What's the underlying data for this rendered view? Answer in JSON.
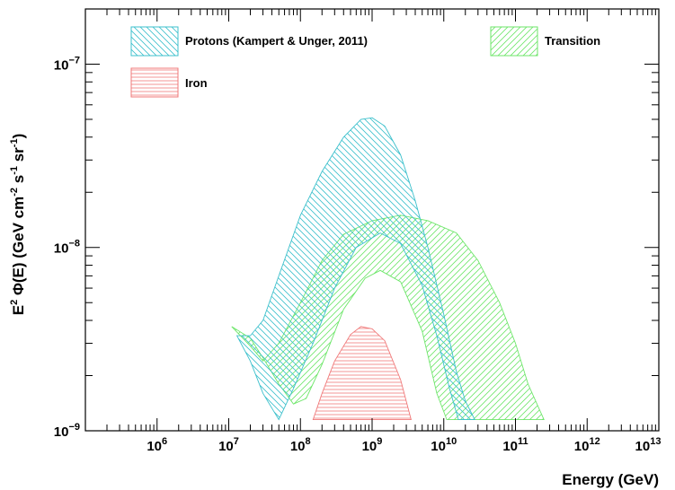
{
  "chart_data": {
    "type": "area",
    "title": "",
    "xlabel": "Energy (GeV)",
    "ylabel_parts": {
      "base": "E",
      "exp": "2",
      "rest": " Φ(E) (GeV cm",
      "exp2": "-2",
      "mid": " s",
      "exp3": "-1",
      "mid2": " sr",
      "exp4": "-1",
      "end": ")"
    },
    "x_scale": "log",
    "y_scale": "log",
    "xlim": [
      100000.0,
      10000000000000.0
    ],
    "ylim": [
      1e-09,
      2e-07
    ],
    "grid": false,
    "legend_position": "top",
    "x_ticks": [
      {
        "base": "10",
        "exp": "6",
        "value": 1000000.0
      },
      {
        "base": "10",
        "exp": "7",
        "value": 10000000.0
      },
      {
        "base": "10",
        "exp": "8",
        "value": 100000000.0
      },
      {
        "base": "10",
        "exp": "9",
        "value": 1000000000.0
      },
      {
        "base": "10",
        "exp": "10",
        "value": 10000000000.0
      },
      {
        "base": "10",
        "exp": "11",
        "value": 100000000000.0
      },
      {
        "base": "10",
        "exp": "12",
        "value": 1000000000000.0
      },
      {
        "base": "10",
        "exp": "13",
        "value": 10000000000000.0
      }
    ],
    "y_ticks": [
      {
        "base": "10",
        "exp": "−9",
        "value": 1e-09
      },
      {
        "base": "10",
        "exp": "−8",
        "value": 1e-08
      },
      {
        "base": "10",
        "exp": "−7",
        "value": 1e-07
      }
    ],
    "series": [
      {
        "name": "Protons (Kampert & Unger, 2011)",
        "color": "#3cc0cc",
        "hatch": "backslash",
        "upper": [
          [
            13000000.0,
            3.3e-09
          ],
          [
            20000000.0,
            3.3e-09
          ],
          [
            30000000.0,
            4e-09
          ],
          [
            50000000.0,
            7e-09
          ],
          [
            100000000.0,
            1.5e-08
          ],
          [
            200000000.0,
            2.6e-08
          ],
          [
            400000000.0,
            4e-08
          ],
          [
            700000000.0,
            5e-08
          ],
          [
            1000000000.0,
            5.1e-08
          ],
          [
            1500000000.0,
            4.6e-08
          ],
          [
            2500000000.0,
            3.2e-08
          ],
          [
            4000000000.0,
            1.8e-08
          ],
          [
            6000000000.0,
            1e-08
          ],
          [
            10000000000.0,
            4.3e-09
          ],
          [
            15000000000.0,
            2.1e-09
          ],
          [
            20000000000.0,
            1.45e-09
          ],
          [
            27000000000.0,
            1.15e-09
          ]
        ],
        "lower": [
          [
            13000000.0,
            3.3e-09
          ],
          [
            20000000.0,
            2.4e-09
          ],
          [
            30000000.0,
            1.6e-09
          ],
          [
            50000000.0,
            1.15e-09
          ],
          [
            80000000.0,
            1.7e-09
          ],
          [
            150000000.0,
            3e-09
          ],
          [
            300000000.0,
            6e-09
          ],
          [
            600000000.0,
            1e-08
          ],
          [
            1300000000.0,
            1.2e-08
          ],
          [
            2500000000.0,
            1.05e-08
          ],
          [
            5000000000.0,
            6.2e-09
          ],
          [
            8000000000.0,
            3.3e-09
          ],
          [
            12000000000.0,
            1.7e-09
          ],
          [
            16000000000.0,
            1.15e-09
          ]
        ]
      },
      {
        "name": "Transition",
        "color": "#6ee66a",
        "hatch": "slash",
        "upper": [
          [
            11000000.0,
            3.7e-09
          ],
          [
            20000000.0,
            2.9e-09
          ],
          [
            30000000.0,
            2.4e-09
          ],
          [
            50000000.0,
            3e-09
          ],
          [
            100000000.0,
            5e-09
          ],
          [
            200000000.0,
            8.5e-09
          ],
          [
            400000000.0,
            1.18e-08
          ],
          [
            1000000000.0,
            1.4e-08
          ],
          [
            2500000000.0,
            1.5e-08
          ],
          [
            6000000000.0,
            1.4e-08
          ],
          [
            15000000000.0,
            1.2e-08
          ],
          [
            30000000000.0,
            8.5e-09
          ],
          [
            60000000000.0,
            5e-09
          ],
          [
            100000000000.0,
            3e-09
          ],
          [
            150000000000.0,
            1.8e-09
          ],
          [
            250000000000.0,
            1.15e-09
          ]
        ],
        "lower": [
          [
            11000000.0,
            3.7e-09
          ],
          [
            20000000.0,
            3.2e-09
          ],
          [
            30000000.0,
            2.5e-09
          ],
          [
            50000000.0,
            1.8e-09
          ],
          [
            80000000.0,
            1.4e-09
          ],
          [
            120000000.0,
            1.5e-09
          ],
          [
            200000000.0,
            2.3e-09
          ],
          [
            400000000.0,
            4.6e-09
          ],
          [
            800000000.0,
            6.8e-09
          ],
          [
            1300000000.0,
            7.5e-09
          ],
          [
            2500000000.0,
            6.5e-09
          ],
          [
            5000000000.0,
            3.5e-09
          ],
          [
            8000000000.0,
            1.6e-09
          ],
          [
            11000000000.0,
            1.15e-09
          ],
          [
            250000000000.0,
            1.15e-09
          ]
        ]
      },
      {
        "name": "Iron",
        "color": "#f07a7a",
        "hatch": "horizontal",
        "upper": [
          [
            150000000.0,
            1.15e-09
          ],
          [
            200000000.0,
            1.6e-09
          ],
          [
            300000000.0,
            2.4e-09
          ],
          [
            500000000.0,
            3.35e-09
          ],
          [
            700000000.0,
            3.7e-09
          ],
          [
            1000000000.0,
            3.6e-09
          ],
          [
            1500000000.0,
            3.1e-09
          ],
          [
            2500000000.0,
            1.9e-09
          ],
          [
            3500000000.0,
            1.15e-09
          ]
        ],
        "lower": [
          [
            150000000.0,
            1.15e-09
          ],
          [
            3500000000.0,
            1.15e-09
          ]
        ]
      }
    ]
  }
}
